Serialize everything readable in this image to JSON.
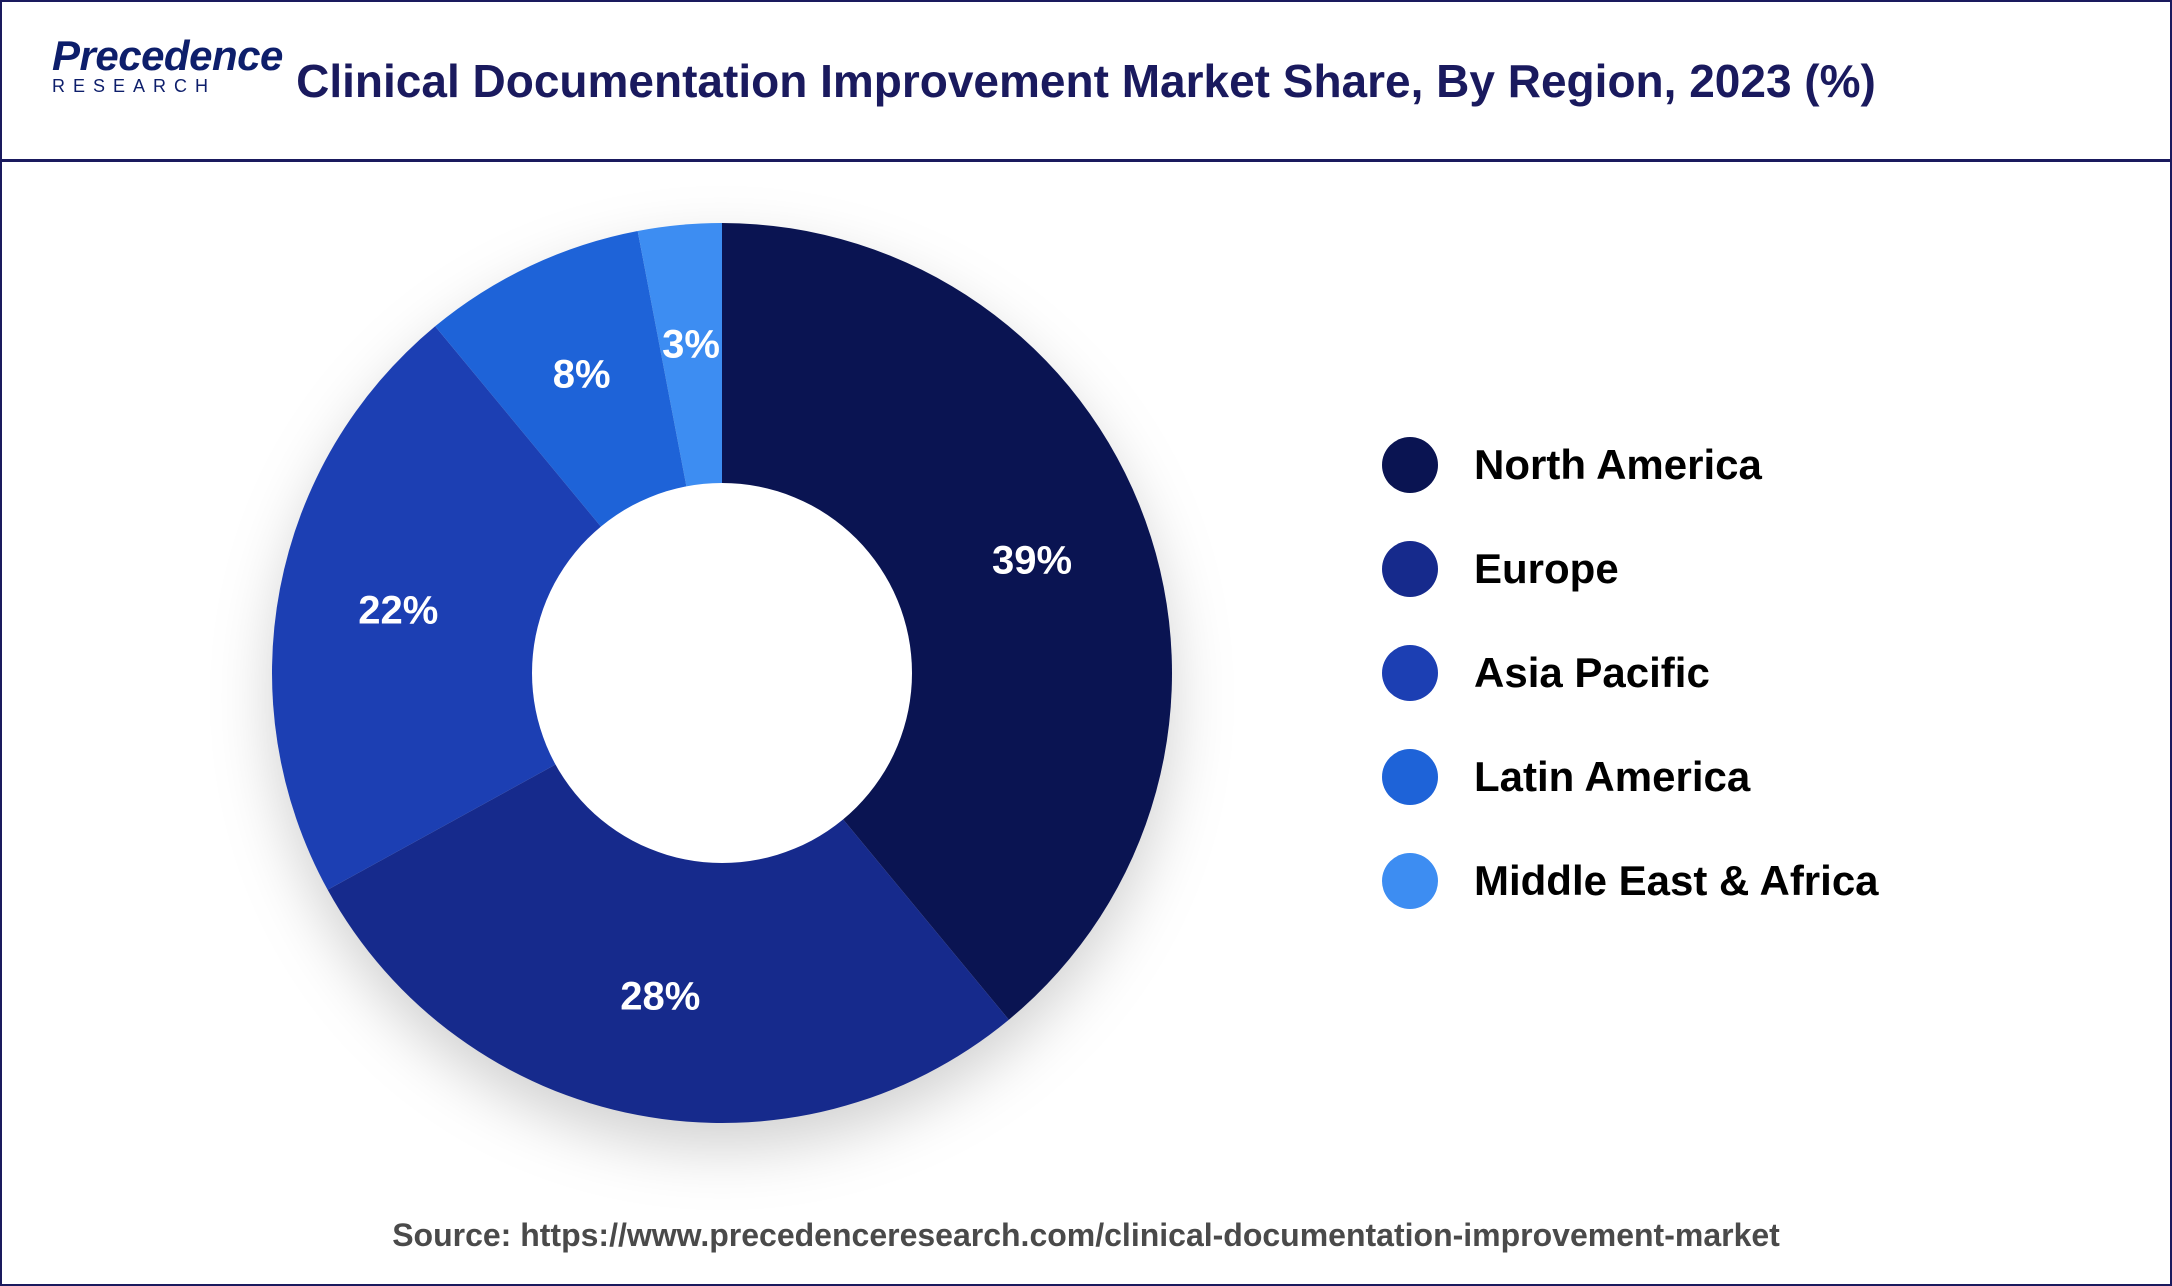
{
  "header": {
    "logo_main": "Precedence",
    "logo_sub": "RESEARCH",
    "title": "Clinical Documentation Improvement Market Share, By Region, 2023 (%)"
  },
  "chart": {
    "type": "donut",
    "inner_radius_ratio": 0.42,
    "background_color": "#ffffff",
    "label_color": "#ffffff",
    "label_fontsize": 40,
    "slices": [
      {
        "label": "North America",
        "value": 39,
        "color": "#0a1452",
        "text": "39%"
      },
      {
        "label": "Europe",
        "value": 28,
        "color": "#162a8c",
        "text": "28%"
      },
      {
        "label": "Asia Pacific",
        "value": 22,
        "color": "#1c3fb3",
        "text": "22%"
      },
      {
        "label": "Latin America",
        "value": 8,
        "color": "#1e63d8",
        "text": "8%"
      },
      {
        "label": "Middle East & Africa",
        "value": 3,
        "color": "#3d8df2",
        "text": "3%"
      }
    ]
  },
  "legend": {
    "items": [
      {
        "label": "North America",
        "color": "#0a1452"
      },
      {
        "label": "Europe",
        "color": "#162a8c"
      },
      {
        "label": "Asia Pacific",
        "color": "#1c3fb3"
      },
      {
        "label": "Latin America",
        "color": "#1e63d8"
      },
      {
        "label": "Middle East & Africa",
        "color": "#3d8df2"
      }
    ],
    "dot_size": 56,
    "label_fontsize": 42,
    "label_color": "#000000",
    "gap": 48
  },
  "footer": {
    "source_text": "Source: https://www.precedenceresearch.com/clinical-documentation-improvement-market",
    "fontsize": 32,
    "color": "#4a4a4a"
  },
  "colors": {
    "border": "#1a1a5e",
    "title": "#1a1a5e"
  }
}
